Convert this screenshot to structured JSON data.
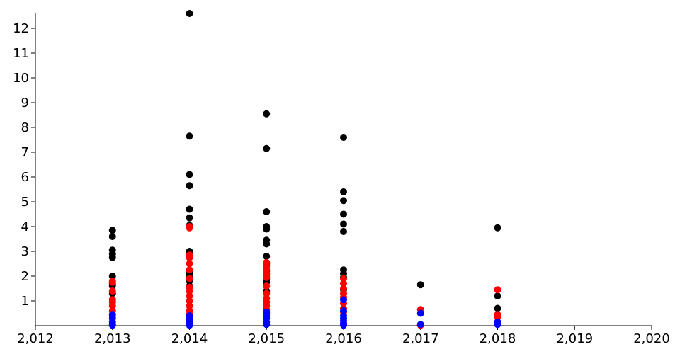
{
  "chart_data": {
    "type": "scatter",
    "xlim": [
      2012,
      2020
    ],
    "xticks": [
      {
        "value": 2012,
        "label": "2,012"
      },
      {
        "value": 2013,
        "label": "2,013"
      },
      {
        "value": 2014,
        "label": "2,014"
      },
      {
        "value": 2015,
        "label": "2,015"
      },
      {
        "value": 2016,
        "label": "2,016"
      },
      {
        "value": 2017,
        "label": "2,017"
      },
      {
        "value": 2018,
        "label": "2,018"
      },
      {
        "value": 2019,
        "label": "2,019"
      },
      {
        "value": 2020,
        "label": "2,020"
      }
    ],
    "ylim": [
      0,
      12.6
    ],
    "yticks": [
      1,
      2,
      3,
      4,
      5,
      6,
      7,
      8,
      9,
      10,
      11,
      12
    ],
    "series": [
      {
        "color": "#000000",
        "x": [
          2013,
          2013,
          2013,
          2013,
          2013,
          2013,
          2013,
          2013,
          2013,
          2014,
          2014,
          2014,
          2014,
          2014,
          2014,
          2014,
          2014,
          2014,
          2014,
          2014,
          2014,
          2014,
          2014,
          2015,
          2015,
          2015,
          2015,
          2015,
          2015,
          2015,
          2015,
          2015,
          2015,
          2015,
          2015,
          2015,
          2015,
          2016,
          2016,
          2016,
          2016,
          2016,
          2016,
          2016,
          2016,
          2016,
          2016,
          2017,
          2018,
          2018,
          2018
        ],
        "values": [
          3.85,
          3.6,
          3.05,
          2.9,
          2.75,
          2.0,
          1.7,
          1.6,
          1.3,
          12.6,
          7.65,
          6.1,
          5.65,
          4.7,
          4.35,
          4.05,
          3.0,
          2.75,
          2.2,
          2.1,
          1.95,
          1.8,
          1.6,
          8.55,
          7.15,
          4.6,
          4.0,
          3.9,
          3.45,
          3.3,
          2.8,
          2.5,
          2.2,
          2.05,
          1.85,
          1.75,
          1.4,
          7.6,
          5.4,
          5.05,
          4.5,
          4.1,
          3.8,
          2.25,
          2.1,
          1.95,
          1.45,
          1.65,
          3.95,
          1.2,
          0.7
        ]
      },
      {
        "color": "#ff0000",
        "x": [
          2013,
          2013,
          2013,
          2013,
          2013,
          2013,
          2013,
          2013,
          2014,
          2014,
          2014,
          2014,
          2014,
          2014,
          2014,
          2014,
          2014,
          2014,
          2014,
          2014,
          2014,
          2014,
          2015,
          2015,
          2015,
          2015,
          2015,
          2015,
          2015,
          2015,
          2015,
          2015,
          2015,
          2015,
          2016,
          2016,
          2016,
          2016,
          2016,
          2016,
          2016,
          2016,
          2017,
          2017,
          2018,
          2018,
          2018
        ],
        "values": [
          1.8,
          1.75,
          1.4,
          1.05,
          0.95,
          0.8,
          0.6,
          0.4,
          4.0,
          3.95,
          2.85,
          2.75,
          2.5,
          2.25,
          1.9,
          1.55,
          1.4,
          1.2,
          1.0,
          0.8,
          0.6,
          0.45,
          2.55,
          2.4,
          2.25,
          2.1,
          1.95,
          1.6,
          1.3,
          1.1,
          0.95,
          0.8,
          0.65,
          0.5,
          1.9,
          1.7,
          1.5,
          1.3,
          1.15,
          0.9,
          0.7,
          0.55,
          0.65,
          0.02,
          1.45,
          0.45,
          0.35
        ]
      },
      {
        "color": "#0000ff",
        "x": [
          2013,
          2013,
          2013,
          2013,
          2013,
          2014,
          2014,
          2014,
          2014,
          2014,
          2014,
          2015,
          2015,
          2015,
          2015,
          2015,
          2016,
          2016,
          2016,
          2016,
          2016,
          2016,
          2016,
          2017,
          2017,
          2018,
          2018
        ],
        "values": [
          0.45,
          0.3,
          0.15,
          0.05,
          0.02,
          0.4,
          0.3,
          0.2,
          0.1,
          0.05,
          0.02,
          0.55,
          0.4,
          0.3,
          0.15,
          0.05,
          1.05,
          0.6,
          0.4,
          0.3,
          0.2,
          0.1,
          0.02,
          0.5,
          0.05,
          0.15,
          0.05
        ]
      }
    ]
  }
}
